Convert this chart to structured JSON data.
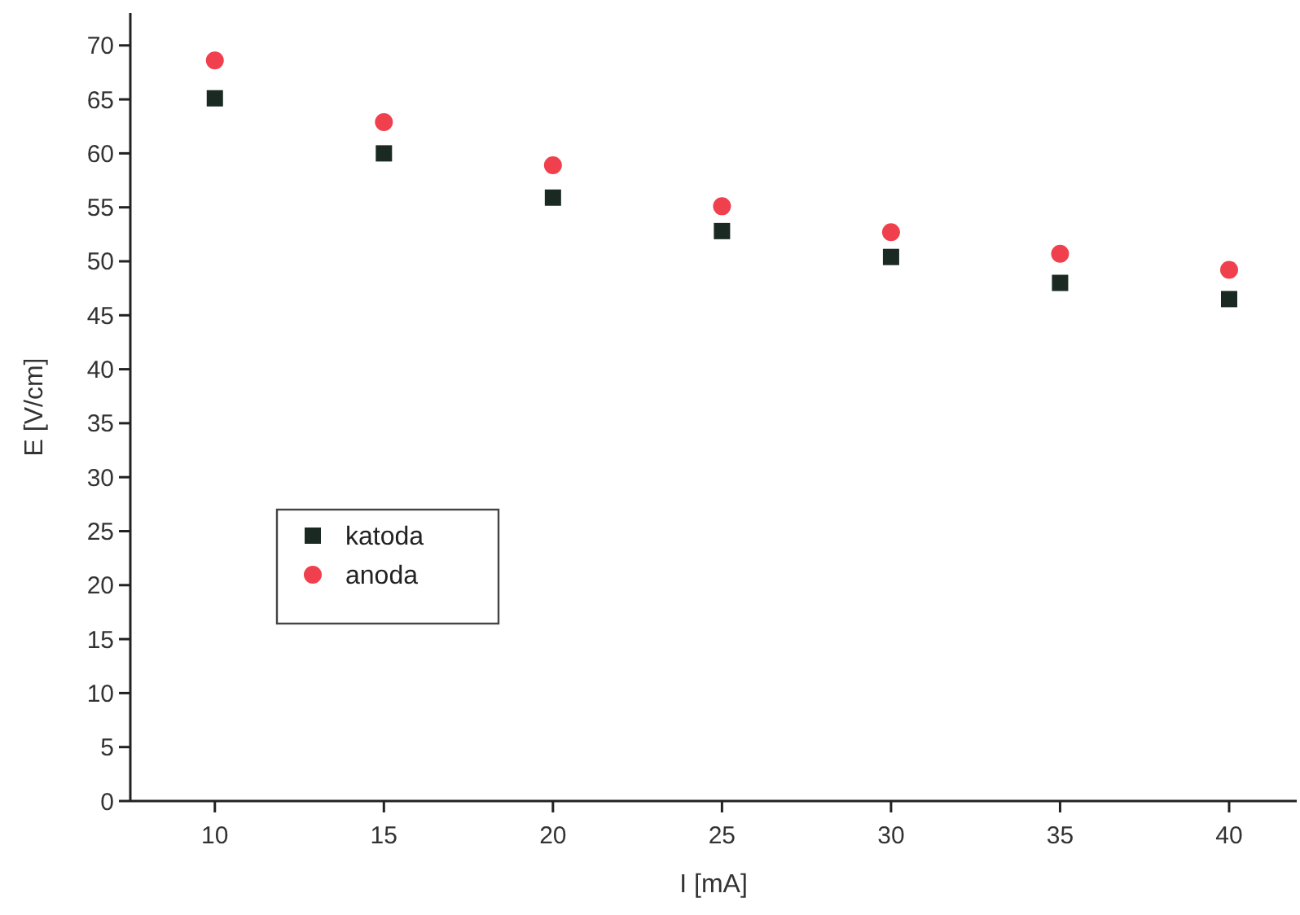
{
  "chart_data": {
    "type": "scatter",
    "xlabel": "I [mA]",
    "ylabel": "E [V/cm]",
    "x": [
      10,
      15,
      20,
      25,
      30,
      35,
      40
    ],
    "series": [
      {
        "name": "katoda",
        "color": "#1a2a22",
        "marker": "square",
        "values": [
          65.1,
          60.0,
          55.9,
          52.8,
          50.4,
          48.0,
          46.5
        ]
      },
      {
        "name": "anoda",
        "color": "#f0404e",
        "marker": "circle",
        "values": [
          68.6,
          62.9,
          58.9,
          55.1,
          52.7,
          50.7,
          49.2
        ]
      }
    ],
    "xlim": [
      7.5,
      42
    ],
    "xticks": [
      10,
      15,
      20,
      25,
      30,
      35,
      40
    ],
    "ylim": [
      0,
      73
    ],
    "yticks": [
      0,
      5,
      10,
      15,
      20,
      25,
      30,
      35,
      40,
      45,
      50,
      55,
      60,
      65,
      70
    ],
    "legend": "left",
    "grid": false
  }
}
